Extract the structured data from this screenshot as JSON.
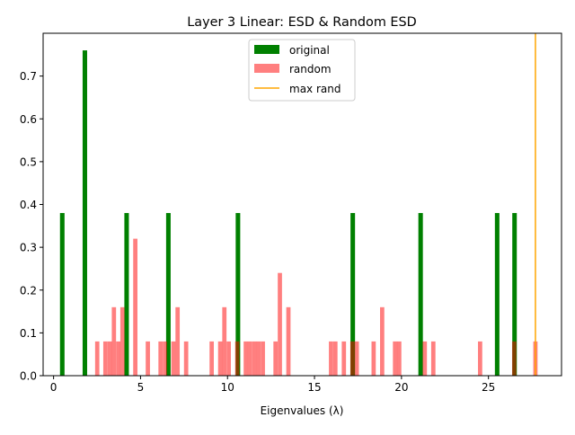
{
  "chart_data": {
    "type": "bar",
    "title": "Layer 3 Linear: ESD & Random ESD",
    "xlabel": "Eigenvalues (λ)",
    "ylabel": "",
    "xlim": [
      -0.6,
      29.2
    ],
    "ylim": [
      0,
      0.8
    ],
    "x_ticks": [
      0,
      5,
      10,
      15,
      20,
      25
    ],
    "y_ticks": [
      0.0,
      0.1,
      0.2,
      0.3,
      0.4,
      0.5,
      0.6,
      0.7
    ],
    "x_tick_labels": [
      "0",
      "5",
      "10",
      "15",
      "20",
      "25"
    ],
    "y_tick_labels": [
      "0.0",
      "0.1",
      "0.2",
      "0.3",
      "0.4",
      "0.5",
      "0.6",
      "0.7"
    ],
    "grid": false,
    "legend_position": "top-center",
    "legend": [
      {
        "label": "original",
        "kind": "patch",
        "color": "#008000",
        "opacity": 1
      },
      {
        "label": "random",
        "kind": "patch",
        "color": "#ff0000",
        "opacity": 0.5
      },
      {
        "label": "max rand",
        "kind": "line",
        "color": "#ffa500",
        "opacity": 1
      }
    ],
    "series": [
      {
        "name": "original",
        "color": "#008000",
        "opacity": 1,
        "bin_width": 0.26,
        "x": [
          0.5,
          1.8,
          4.2,
          6.6,
          10.6,
          17.2,
          21.1,
          25.5,
          26.5
        ],
        "values": [
          0.38,
          0.76,
          0.38,
          0.38,
          0.38,
          0.38,
          0.38,
          0.38,
          0.38
        ]
      },
      {
        "name": "random",
        "color": "#ff0000",
        "opacity": 0.5,
        "bin_width": 0.245,
        "x": [
          2.51,
          2.98,
          3.23,
          3.47,
          3.72,
          3.96,
          4.7,
          5.42,
          6.15,
          6.4,
          6.89,
          7.13,
          7.62,
          9.09,
          9.58,
          9.82,
          10.07,
          10.56,
          11.05,
          11.29,
          11.54,
          11.78,
          12.03,
          12.76,
          13.01,
          13.5,
          15.95,
          16.2,
          16.69,
          17.18,
          17.43,
          18.4,
          18.89,
          19.63,
          19.87,
          21.34,
          21.83,
          24.52,
          26.48,
          27.7
        ],
        "values": [
          0.08,
          0.08,
          0.08,
          0.16,
          0.08,
          0.16,
          0.32,
          0.08,
          0.08,
          0.08,
          0.08,
          0.16,
          0.08,
          0.08,
          0.08,
          0.16,
          0.08,
          0.08,
          0.08,
          0.08,
          0.08,
          0.08,
          0.08,
          0.08,
          0.24,
          0.16,
          0.08,
          0.08,
          0.08,
          0.08,
          0.08,
          0.08,
          0.16,
          0.08,
          0.08,
          0.08,
          0.08,
          0.08,
          0.08,
          0.08
        ]
      }
    ],
    "vlines": [
      {
        "name": "max rand",
        "x": 27.7,
        "color": "#ffa500"
      }
    ]
  }
}
